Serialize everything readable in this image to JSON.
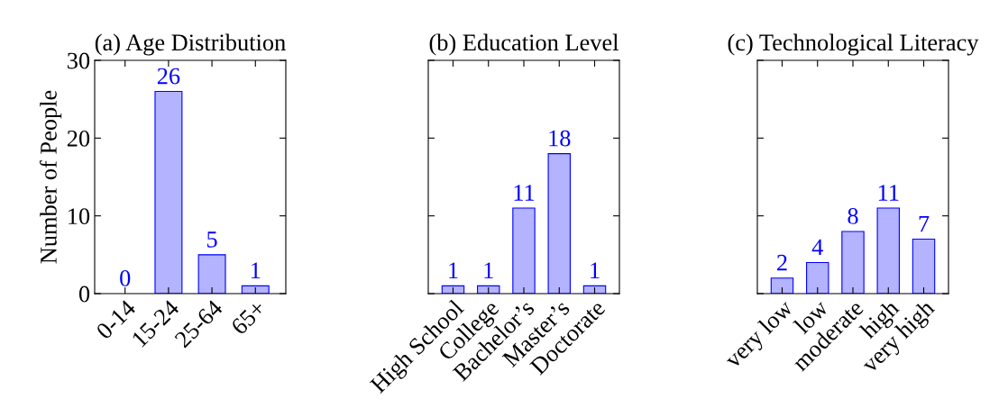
{
  "chart_data": [
    {
      "type": "bar",
      "title": "(a) Age Distribution",
      "ylabel": "Number of People",
      "categories": [
        "0-14",
        "15-24",
        "25-64",
        "65+"
      ],
      "values": [
        0,
        26,
        5,
        1
      ],
      "color": "#b3b3ff",
      "data_labels": true,
      "ylim": [
        0,
        30
      ],
      "yticks": [
        0,
        10,
        20,
        30
      ],
      "grid": false
    },
    {
      "type": "bar",
      "title": "(b) Education Level",
      "categories": [
        "High School",
        "College",
        "Bachelor’s",
        "Master’s",
        "Doctorate"
      ],
      "values": [
        1,
        1,
        11,
        18,
        1
      ],
      "color": "#b3b3ff",
      "data_labels": true,
      "ylim": [
        0,
        30
      ],
      "yticks": [
        0,
        10,
        20,
        30
      ],
      "tick_labels": "x",
      "grid": false
    },
    {
      "type": "bar",
      "title": "(c) Technological Literacy",
      "categories": [
        "very low",
        "low",
        "moderate",
        "high",
        "very high"
      ],
      "values": [
        2,
        4,
        8,
        11,
        7
      ],
      "color": "#b3b3ff",
      "data_labels": true,
      "ylim": [
        0,
        30
      ],
      "yticks": [
        0,
        10,
        20,
        30
      ],
      "tick_labels": "x",
      "grid": false
    }
  ]
}
